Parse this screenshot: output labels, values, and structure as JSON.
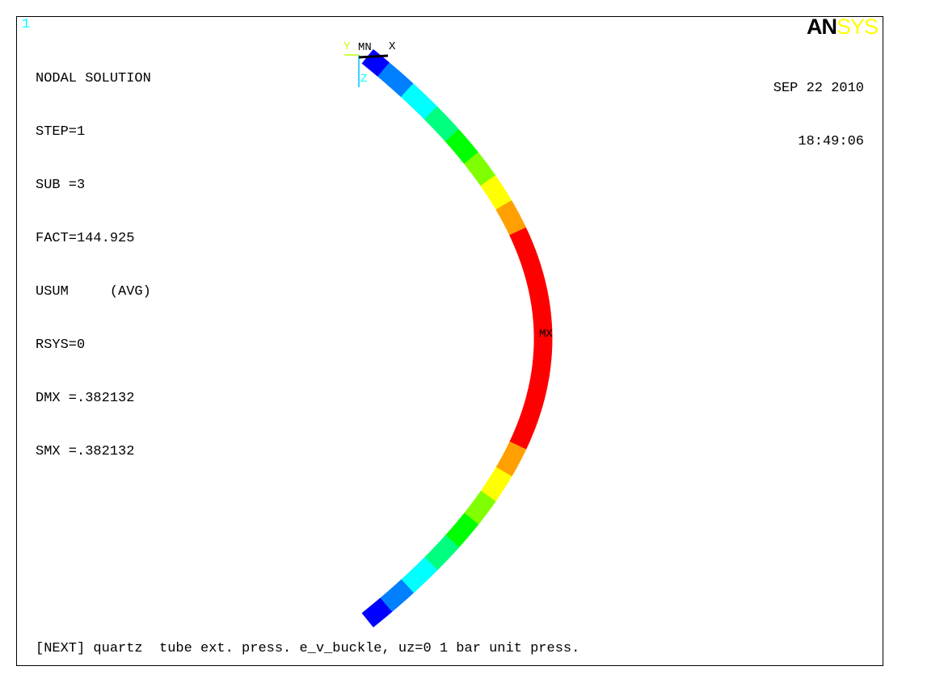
{
  "window_number": "1",
  "header": {
    "title": "NODAL SOLUTION",
    "lines": [
      "STEP=1",
      "SUB =3",
      "FACT=144.925",
      "USUM     (AVG)",
      "RSYS=0",
      "DMX =.382132",
      "SMX =.382132"
    ]
  },
  "logo": {
    "part1": "AN",
    "part2": "SYS"
  },
  "datetime": {
    "date": "SEP 22 2010",
    "time": "18:49:06"
  },
  "triad": {
    "y": "Y",
    "z": "Z",
    "x": "X"
  },
  "markers": {
    "min": "MN",
    "max": "MX"
  },
  "caption": "[NEXT] quartz  tube ext. press. e_v_buckle, uz=0 1 bar unit press.",
  "contour_colors": [
    "#0000ff",
    "#0080ff",
    "#00ffff",
    "#00ff80",
    "#00ff00",
    "#80ff00",
    "#ffff00",
    "#ffa000",
    "#ff0000"
  ]
}
